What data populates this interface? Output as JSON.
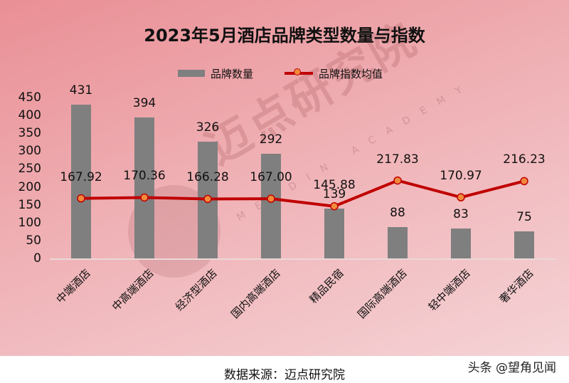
{
  "chart_data": {
    "type": "bar",
    "title": "2023年5月酒店品牌类型数量与指数",
    "categories": [
      "中端酒店",
      "中高端酒店",
      "经济型酒店",
      "国内高端酒店",
      "精品民宿",
      "国际高端酒店",
      "轻中端酒店",
      "奢华酒店"
    ],
    "series": [
      {
        "name": "品牌数量",
        "type": "bar",
        "color": "#7f7f7f",
        "values": [
          431,
          394,
          326,
          292,
          139,
          88,
          83,
          75
        ]
      },
      {
        "name": "品牌指数均值",
        "type": "line",
        "color": "#c00000",
        "marker_color": "#f08a3c",
        "values": [
          167.92,
          170.36,
          166.28,
          167.0,
          145.88,
          217.83,
          170.97,
          216.23
        ]
      }
    ],
    "bar_labels": [
      "431",
      "394",
      "326",
      "292",
      "139",
      "88",
      "83",
      "75"
    ],
    "line_labels": [
      "167.92",
      "170.36",
      "166.28",
      "167.00",
      "145.88",
      "217.83",
      "170.97",
      "216.23"
    ],
    "xlabel": "",
    "ylabel": "",
    "ylim": [
      0,
      450
    ],
    "yticks": [
      "0",
      "50",
      "100",
      "150",
      "200",
      "250",
      "300",
      "350",
      "400",
      "450"
    ],
    "grid": false,
    "legend_position": "top"
  },
  "legend": {
    "bar_label": "品牌数量",
    "line_label": "品牌指数均值"
  },
  "watermark": {
    "text": "迈点研究院",
    "sub": "MEADIN ACADEMY"
  },
  "footer": {
    "source": "数据来源：迈点研究院",
    "credit": "头条 @望角见闻"
  }
}
